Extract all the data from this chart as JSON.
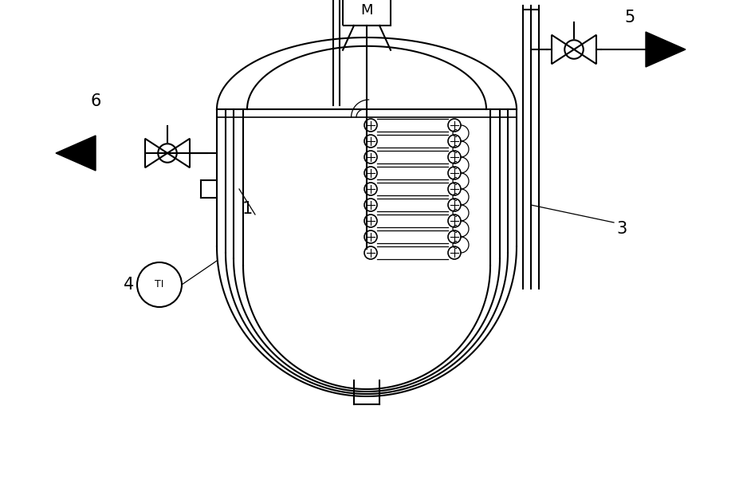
{
  "bg_color": "#ffffff",
  "line_color": "#000000",
  "fig_width": 9.28,
  "fig_height": 6.27,
  "dpi": 100
}
